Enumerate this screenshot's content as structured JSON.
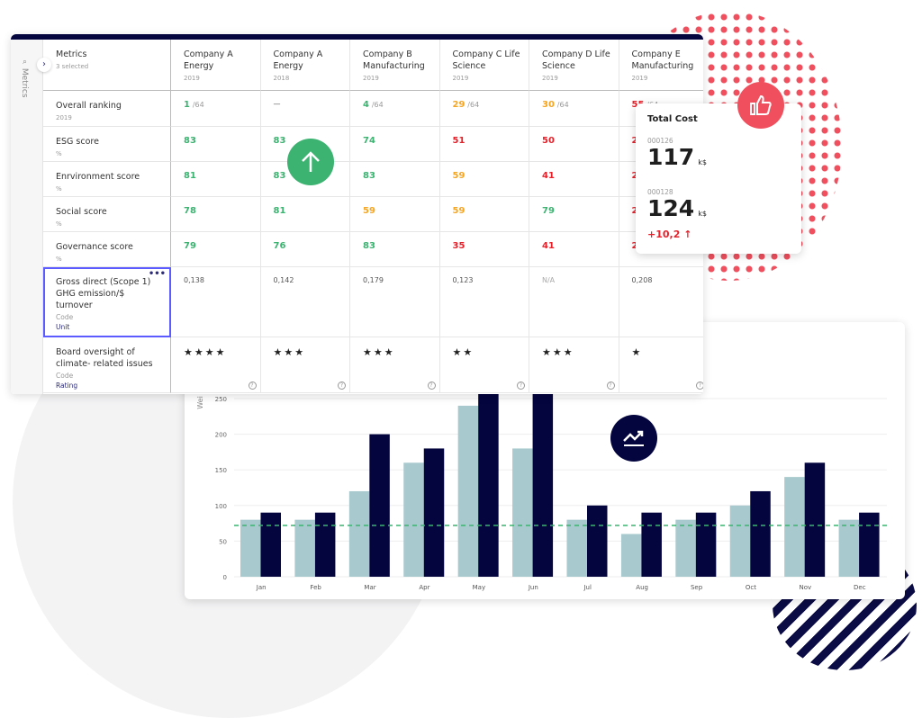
{
  "sidebar": {
    "label": "Metrics",
    "search_icon": "search-icon",
    "toggle_icon": "chevron-right-icon"
  },
  "table": {
    "header": {
      "title": "Metrics",
      "subtitle": "3 selected"
    },
    "columns": [
      {
        "name": "Company A Energy",
        "year": "2019"
      },
      {
        "name": "Company A Energy",
        "year": "2018"
      },
      {
        "name": "Company B Manufacturing",
        "year": "2019"
      },
      {
        "name": "Company C Life Science",
        "year": "2019"
      },
      {
        "name": "Company D Life Science",
        "year": "2019"
      },
      {
        "name": "Company E Manufacturing",
        "year": "2019"
      }
    ],
    "rows": [
      {
        "name": "Overall ranking",
        "sub": "2019",
        "cells": [
          {
            "v": "1",
            "d": "/64",
            "c": "g"
          },
          {
            "v": "—",
            "d": "",
            "c": "plain"
          },
          {
            "v": "4",
            "d": "/64",
            "c": "g"
          },
          {
            "v": "29",
            "d": "/64",
            "c": "o"
          },
          {
            "v": "30",
            "d": "/64",
            "c": "o"
          },
          {
            "v": "55",
            "d": "/64",
            "c": "r"
          }
        ]
      },
      {
        "name": "ESG score",
        "sub": "%",
        "cells": [
          {
            "v": "83",
            "c": "g"
          },
          {
            "v": "83",
            "c": "g"
          },
          {
            "v": "74",
            "c": "g"
          },
          {
            "v": "51",
            "c": "r"
          },
          {
            "v": "50",
            "c": "r"
          },
          {
            "v": "24",
            "c": "r"
          }
        ]
      },
      {
        "name": "Enrvironment score",
        "sub": "%",
        "cells": [
          {
            "v": "81",
            "c": "g"
          },
          {
            "v": "83",
            "c": "g"
          },
          {
            "v": "83",
            "c": "g"
          },
          {
            "v": "59",
            "c": "o"
          },
          {
            "v": "41",
            "c": "r"
          },
          {
            "v": "26",
            "c": "r"
          }
        ]
      },
      {
        "name": "Social score",
        "sub": "%",
        "cells": [
          {
            "v": "78",
            "c": "g"
          },
          {
            "v": "81",
            "c": "g"
          },
          {
            "v": "59",
            "c": "o"
          },
          {
            "v": "59",
            "c": "o"
          },
          {
            "v": "79",
            "c": "g"
          },
          {
            "v": "23",
            "c": "r"
          }
        ]
      },
      {
        "name": "Governance score",
        "sub": "%",
        "cells": [
          {
            "v": "79",
            "c": "g"
          },
          {
            "v": "76",
            "c": "g"
          },
          {
            "v": "83",
            "c": "g"
          },
          {
            "v": "35",
            "c": "r"
          },
          {
            "v": "41",
            "c": "r"
          },
          {
            "v": "25",
            "c": "r"
          }
        ]
      },
      {
        "name": "Gross direct (Scope 1) GHG emission/$ turnover",
        "code": "Code",
        "unit": "Unit",
        "more": "•••",
        "cells": [
          {
            "v": "0,138"
          },
          {
            "v": "0,142"
          },
          {
            "v": "0,179"
          },
          {
            "v": "0,123"
          },
          {
            "v": "N/A"
          },
          {
            "v": "0,208"
          }
        ]
      },
      {
        "name": "Board oversight of climate- related issues",
        "code": "Code",
        "unit": "Rating",
        "rating": [
          4,
          3,
          3,
          2,
          3,
          1
        ],
        "help": "?"
      }
    ]
  },
  "colors": {
    "green": "#3cb371",
    "orange": "#f5a623",
    "red": "#e8202a",
    "navy": "#04043f",
    "light_bar": "#a8c9cd",
    "target": "#3cb371"
  },
  "cost_card": {
    "title": "Total Cost",
    "items": [
      {
        "id": "000126",
        "value": "117",
        "unit": "k$"
      },
      {
        "id": "000128",
        "value": "124",
        "unit": "k$"
      }
    ],
    "delta": "+10,2",
    "delta_icon": "arrow-up-icon"
  },
  "badges": {
    "up": "arrow-up-icon",
    "like": "thumbs-up-icon",
    "trend": "trending-up-icon"
  },
  "chart_data": {
    "type": "bar",
    "ylabel": "Wei",
    "ylim": [
      0,
      250
    ],
    "yticks": [
      0,
      50,
      100,
      150,
      200,
      250
    ],
    "grid": true,
    "categories": [
      "Jan",
      "Feb",
      "Mar",
      "Apr",
      "May",
      "Jun",
      "Jul",
      "Aug",
      "Sep",
      "Oct",
      "Nov",
      "Dec"
    ],
    "series": [
      {
        "values": [
          80,
          80,
          120,
          160,
          240,
          180,
          80,
          60,
          80,
          100,
          140,
          80
        ],
        "color": "#a8c9cd"
      },
      {
        "values": [
          90,
          90,
          200,
          180,
          260,
          260,
          100,
          90,
          90,
          120,
          160,
          90
        ],
        "color": "#04043f"
      }
    ],
    "target_line": 72
  }
}
